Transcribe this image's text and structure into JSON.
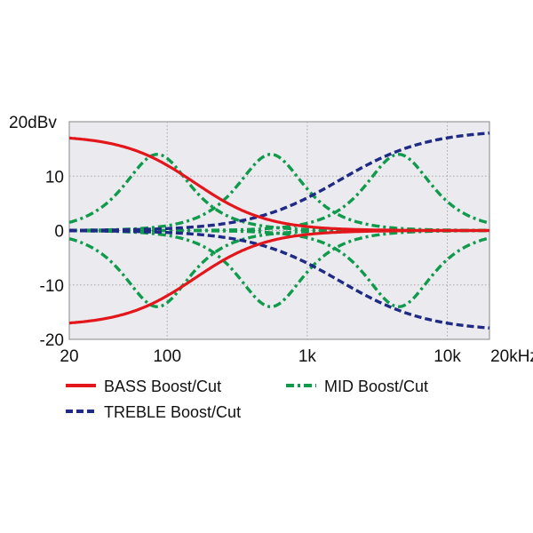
{
  "chart_data": {
    "type": "line",
    "title": "",
    "xlabel": "Hz",
    "ylabel": "dBv",
    "xscale": "log",
    "xlim": [
      20,
      20000
    ],
    "ylim": [
      -20,
      20
    ],
    "grid": true,
    "x_ticks": [
      {
        "value": 20,
        "label": "20"
      },
      {
        "value": 100,
        "label": "100"
      },
      {
        "value": 1000,
        "label": "1k"
      },
      {
        "value": 10000,
        "label": "10k"
      },
      {
        "value": 20000,
        "label": "20kHz"
      }
    ],
    "y_ticks": [
      {
        "value": 20,
        "label": "20dBv"
      },
      {
        "value": 10,
        "label": "10"
      },
      {
        "value": 0,
        "label": "0"
      },
      {
        "value": -10,
        "label": "-10"
      },
      {
        "value": -20,
        "label": "-20"
      }
    ],
    "legend_position": "bottom",
    "series": [
      {
        "name": "BASS Boost/Cut",
        "color": "#e2161b",
        "style": "solid",
        "kind": "low-shelf",
        "corner_hz": 158,
        "slope": 1.7,
        "gains_db": [
          17.5,
          -17.5
        ]
      },
      {
        "name": "TREBLE Boost/Cut",
        "color": "#1f2a84",
        "style": "dashed",
        "kind": "high-shelf",
        "corner_hz": 1700,
        "slope": 1.38,
        "gains_db": [
          18.5,
          -18.5
        ]
      },
      {
        "name": "MID Boost/Cut",
        "color": "#0f9a4c",
        "style": "dash-dot",
        "kind": "peaking",
        "q": 0.72,
        "centers_hz": [
          85,
          550,
          4500
        ],
        "gains_db": [
          14,
          -14
        ]
      }
    ]
  }
}
